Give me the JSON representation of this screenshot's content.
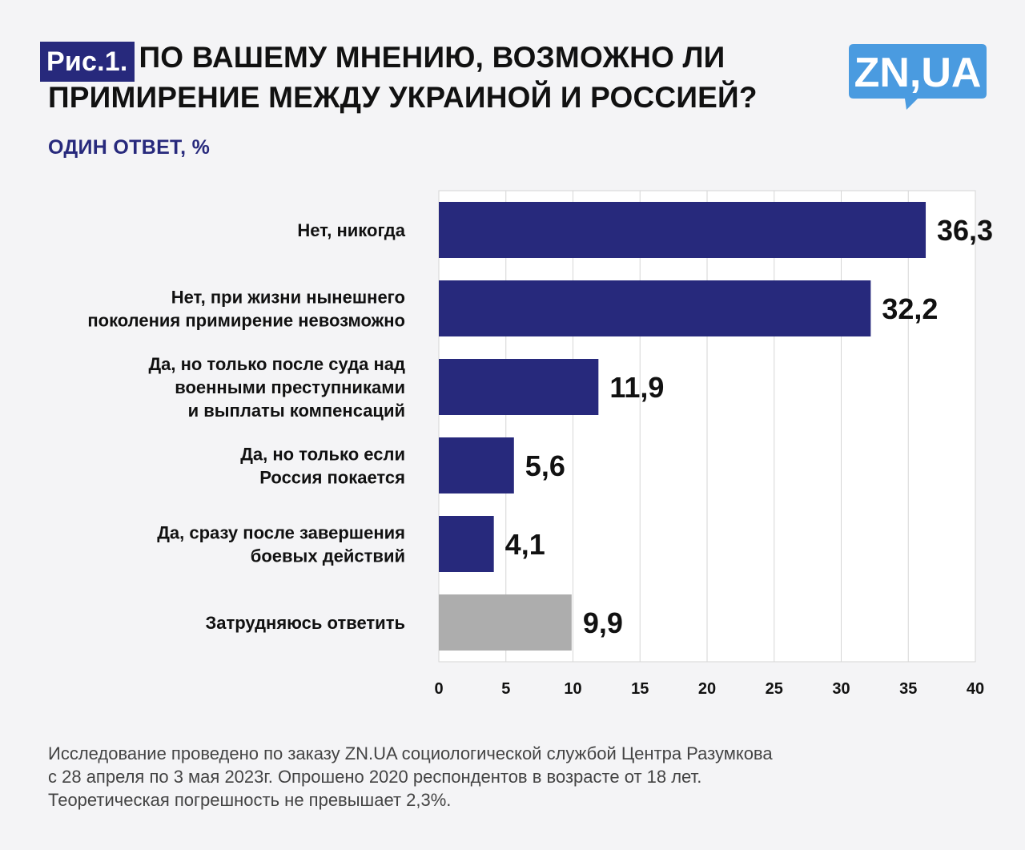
{
  "header": {
    "figure_label": "Рис.1.",
    "title_line1": "ПО ВАШЕМУ МНЕНИЮ, ВОЗМОЖНО ЛИ",
    "title_line2": "ПРИМИРЕНИЕ МЕЖДУ УКРАИНОЙ И РОССИЕЙ?",
    "subtitle": "ОДИН ОТВЕТ, %"
  },
  "logo": {
    "text": "ZN,UA",
    "color": "#4a9be0"
  },
  "chart_data": {
    "type": "bar",
    "orientation": "horizontal",
    "categories": [
      [
        "Нет, никогда"
      ],
      [
        "Нет, при жизни нынешнего",
        "поколения примирение невозможно"
      ],
      [
        "Да, но только после суда над",
        "военными преступниками",
        "и выплаты компенсаций"
      ],
      [
        "Да, но только если",
        "Россия покается"
      ],
      [
        "Да, сразу после завершения",
        "боевых действий"
      ],
      [
        "Затрудняюсь ответить"
      ]
    ],
    "values": [
      36.3,
      32.2,
      11.9,
      5.6,
      4.1,
      9.9
    ],
    "value_labels": [
      "36,3",
      "32,2",
      "11,9",
      "5,6",
      "4,1",
      "9,9"
    ],
    "bar_colors": [
      "#27297c",
      "#27297c",
      "#27297c",
      "#27297c",
      "#27297c",
      "#adadad"
    ],
    "xlim": [
      0,
      40
    ],
    "xticks": [
      0,
      5,
      10,
      15,
      20,
      25,
      30,
      35,
      40
    ],
    "grid": true
  },
  "footnote": {
    "line1": "Исследование проведено по заказу ZN.UA социологической службой Центра Разумкова",
    "line2": "с 28 апреля по 3 мая 2023г. Опрошено 2020 респондентов в возрасте от 18 лет.",
    "line3": "Теоретическая погрешность не превышает 2,3%."
  }
}
